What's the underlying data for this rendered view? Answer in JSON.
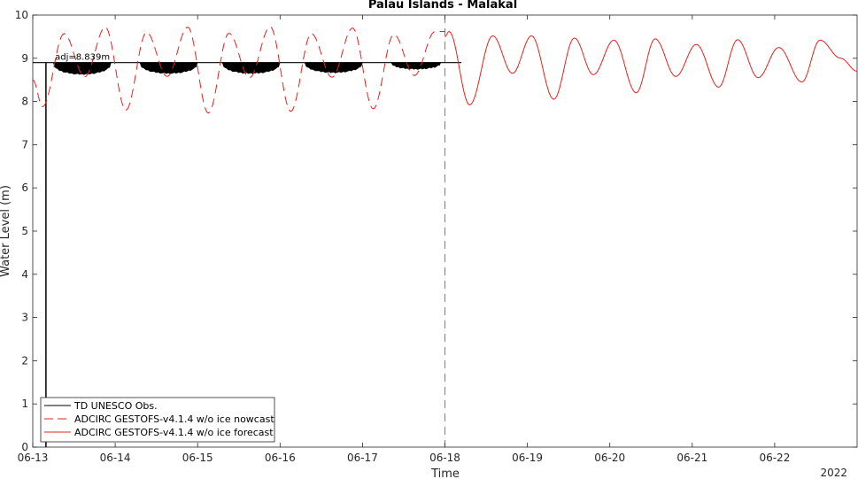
{
  "chart_data": {
    "type": "line",
    "title": "Palau Islands - Malakal",
    "xlabel": "Time",
    "ylabel": "Water Level (m)",
    "year_label": "2022",
    "x_start": "2022-06-13",
    "x_end": "2022-06-22 23:00",
    "xlim_days": [
      0,
      10
    ],
    "ylim": [
      0,
      10
    ],
    "y_ticks": [
      0,
      1,
      2,
      3,
      4,
      5,
      6,
      7,
      8,
      9,
      10
    ],
    "x_tick_labels": [
      "06-13",
      "06-14",
      "06-15",
      "06-16",
      "06-17",
      "06-18",
      "06-19",
      "06-20",
      "06-21",
      "06-22"
    ],
    "nowcast_end": "06-18",
    "annotation": "adj=8.839m",
    "grid": false,
    "legend_position": "bottom-left",
    "colors": {
      "observation": "#000000",
      "nowcast": "#e8201d",
      "forecast": "#e8201d",
      "divider": "#7f7f7f"
    },
    "series": [
      {
        "name": "TD UNESCO Obs.",
        "style": "solid",
        "color": "#000000",
        "description_points": {
          "x_days": [
            0.0,
            0.05,
            0.13,
            0.15,
            0.16,
            0.2,
            0.3,
            0.4,
            0.5,
            0.6,
            0.7,
            0.8,
            0.9,
            1.0,
            1.3,
            1.5,
            1.8,
            2.0,
            2.3,
            2.5,
            2.8,
            3.0,
            3.3,
            3.5,
            3.8,
            4.0,
            4.3,
            4.5,
            4.8,
            4.95
          ],
          "y": [
            8.9,
            8.9,
            8.9,
            0.0,
            8.9,
            8.9,
            8.72,
            8.65,
            8.62,
            8.64,
            8.7,
            8.78,
            8.83,
            8.89,
            8.85,
            8.66,
            8.66,
            8.89,
            8.84,
            8.65,
            8.66,
            8.89,
            8.84,
            8.66,
            8.67,
            8.89,
            8.84,
            8.74,
            8.75,
            8.89
          ]
        }
      },
      {
        "name": "ADCIRC GESTOFS-v4.1.4 w/o ice nowcast",
        "style": "dashed",
        "color": "#e8201d",
        "x_days": [
          0.0,
          0.12,
          0.38,
          0.63,
          0.88,
          1.13,
          1.38,
          1.63,
          1.88,
          2.13,
          2.38,
          2.63,
          2.88,
          3.13,
          3.38,
          3.63,
          3.88,
          4.13,
          4.38,
          4.63,
          4.88,
          5.0
        ],
        "y": [
          8.5,
          7.88,
          9.57,
          8.57,
          9.72,
          7.8,
          9.6,
          8.58,
          9.72,
          7.73,
          9.58,
          8.55,
          9.73,
          7.77,
          9.57,
          8.56,
          9.7,
          7.83,
          9.55,
          8.6,
          9.62,
          9.62
        ]
      },
      {
        "name": "ADCIRC GESTOFS-v4.1.4 w/o ice forecast",
        "style": "solid",
        "color": "#e8201d",
        "x_days": [
          5.0,
          5.05,
          5.3,
          5.58,
          5.82,
          6.05,
          6.32,
          6.57,
          6.8,
          7.05,
          7.32,
          7.55,
          7.8,
          8.05,
          8.32,
          8.55,
          8.8,
          9.05,
          9.33,
          9.55,
          9.8,
          10.0
        ],
        "y": [
          9.5,
          9.62,
          7.92,
          9.52,
          8.65,
          9.52,
          8.05,
          9.47,
          8.62,
          9.42,
          8.2,
          9.45,
          8.58,
          9.32,
          8.33,
          9.43,
          8.55,
          9.25,
          8.45,
          9.42,
          9.0,
          8.7
        ]
      }
    ]
  }
}
